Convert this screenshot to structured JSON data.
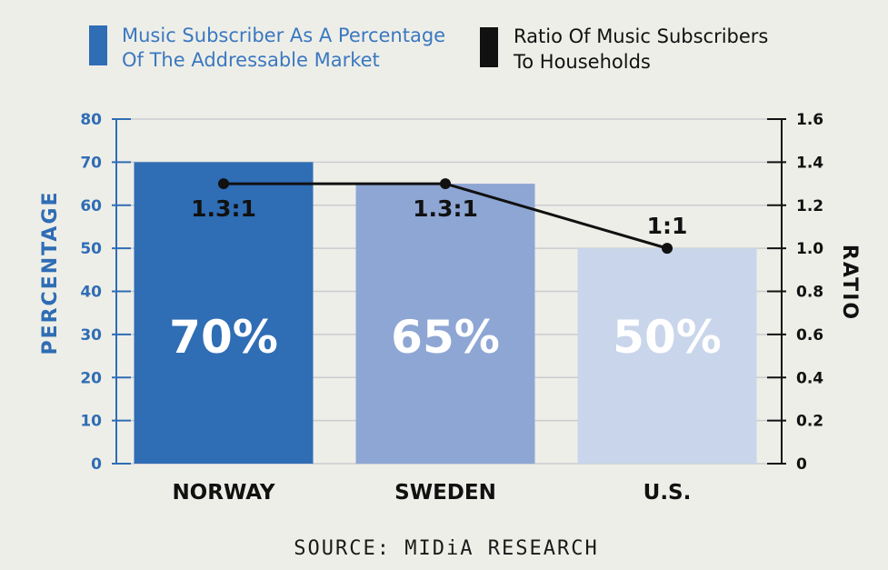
{
  "chart_data": {
    "type": "bar",
    "categories": [
      "NORWAY",
      "SWEDEN",
      "U.S."
    ],
    "series": [
      {
        "name": "Music Subscriber As A Percentage Of The Addressable Market",
        "legend_lines": [
          "Music Subscriber As A Percentage",
          "Of The Addressable Market"
        ],
        "type": "bar",
        "axis": "left",
        "values": [
          70,
          65,
          50
        ],
        "value_labels": [
          "70%",
          "65%",
          "50%"
        ],
        "colors": [
          "#2f6db5",
          "#8ea6d4",
          "#c9d5ea"
        ]
      },
      {
        "name": "Ratio Of Music Subscribers To Households",
        "legend_lines": [
          "Ratio Of Music Subscribers",
          "To Households"
        ],
        "type": "line",
        "axis": "right",
        "values": [
          1.3,
          1.3,
          1.0
        ],
        "value_labels": [
          "1.3:1",
          "1.3:1",
          "1:1"
        ],
        "color": "#111111"
      }
    ],
    "y_left": {
      "label": "PERCENTAGE",
      "range": [
        0,
        80
      ],
      "ticks": [
        "0",
        "10",
        "20",
        "30",
        "40",
        "50",
        "60",
        "70",
        "80"
      ],
      "color": "#2f6db5"
    },
    "y_right": {
      "label": "RATIO",
      "range": [
        0,
        1.6
      ],
      "ticks": [
        "0",
        "0.2",
        "0.4",
        "0.6",
        "0.8",
        "1.0",
        "1.2",
        "1.4",
        "1.6"
      ],
      "color": "#111111"
    },
    "grid": true,
    "legend": "top",
    "source": "SOURCE: MIDiA RESEARCH"
  }
}
